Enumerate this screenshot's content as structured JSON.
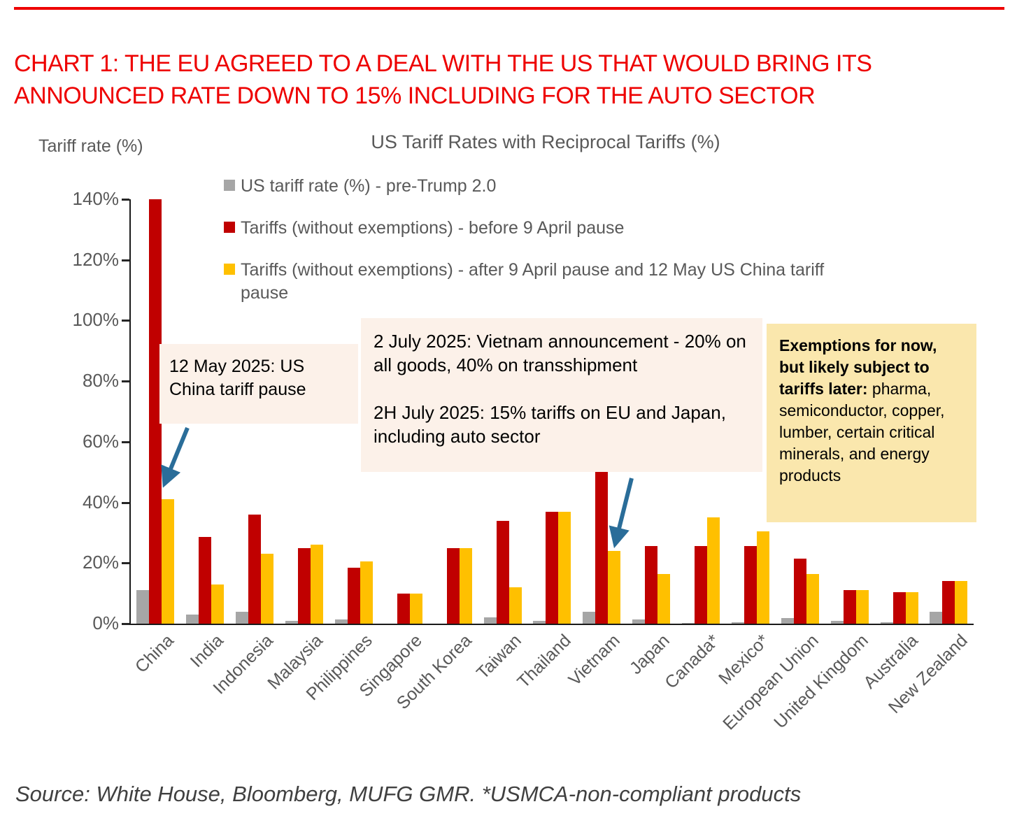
{
  "header": {
    "headline_line1": "CHART 1: THE EU AGREED TO A DEAL WITH THE US THAT WOULD BRING ITS",
    "headline_line2": "ANNOUNCED RATE DOWN TO 15% INCLUDING FOR THE AUTO SECTOR",
    "headline_color": "#ee0000"
  },
  "chart_data": {
    "type": "bar",
    "title": "US Tariff Rates with Reciprocal Tariffs (%)",
    "ylabel": "Tariff rate (%)",
    "ylim": [
      0,
      140
    ],
    "ytick_step": 20,
    "ytick_suffix": "%",
    "grid": false,
    "legend_position": "top-inside",
    "axis_color": "#1a1a1a",
    "tick_text_color": "#595959",
    "categories": [
      "China",
      "India",
      "Indonesia",
      "Malaysia",
      "Philippines",
      "Singapore",
      "South Korea",
      "Taiwan",
      "Thailand",
      "Vietnam",
      "Japan",
      "Canada*",
      "Mexico*",
      "European Union",
      "United Kingdom",
      "Australia",
      "New Zealand"
    ],
    "series": [
      {
        "key": "pre-trump",
        "name": "US tariff rate (%) - pre-Trump 2.0",
        "color": "#A6A6A6",
        "values": [
          11,
          3,
          4,
          1,
          1.5,
          0,
          0,
          2,
          1,
          4,
          1.5,
          0.3,
          0.5,
          1.8,
          1,
          0.5,
          4
        ]
      },
      {
        "key": "before-9-april",
        "name": "Tariffs (without exemptions) - before 9 April pause",
        "color": "#C00000",
        "values": [
          140,
          28.5,
          36,
          25,
          18.5,
          10,
          25,
          34,
          37,
          50,
          25.5,
          25.5,
          25.5,
          21.5,
          11,
          10.5,
          14
        ]
      },
      {
        "key": "after-9-april",
        "name": "Tariffs (without exemptions) - after 9 April pause and 12 May US China tariff pause",
        "color": "#FFC000",
        "values": [
          41,
          13,
          23,
          26,
          20.5,
          10,
          25,
          12,
          37,
          24,
          16.5,
          35,
          30.5,
          16.5,
          11,
          10.5,
          14
        ]
      }
    ]
  },
  "annotations": {
    "china_pause": {
      "text": "12 May 2025: US China tariff pause",
      "bg": "#FCF1E9"
    },
    "vietnam_eu": {
      "line1": "2 July 2025: Vietnam announcement - 20% on all goods, 40% on transshipment",
      "line2": "2H July 2025: 15% tariffs on EU and Japan, including auto sector",
      "bg": "#FCF1E9"
    },
    "exemptions": {
      "bold": "Exemptions for now, but likely subject to tariffs later:",
      "rest": " pharma, semiconductor, copper, lumber, certain critical minerals, and energy products",
      "bg": "#FAE7AD"
    },
    "arrow_color": "#2A6D99"
  },
  "footer": {
    "source": "Source: White House, Bloomberg, MUFG GMR. *USMCA-non-compliant products"
  }
}
